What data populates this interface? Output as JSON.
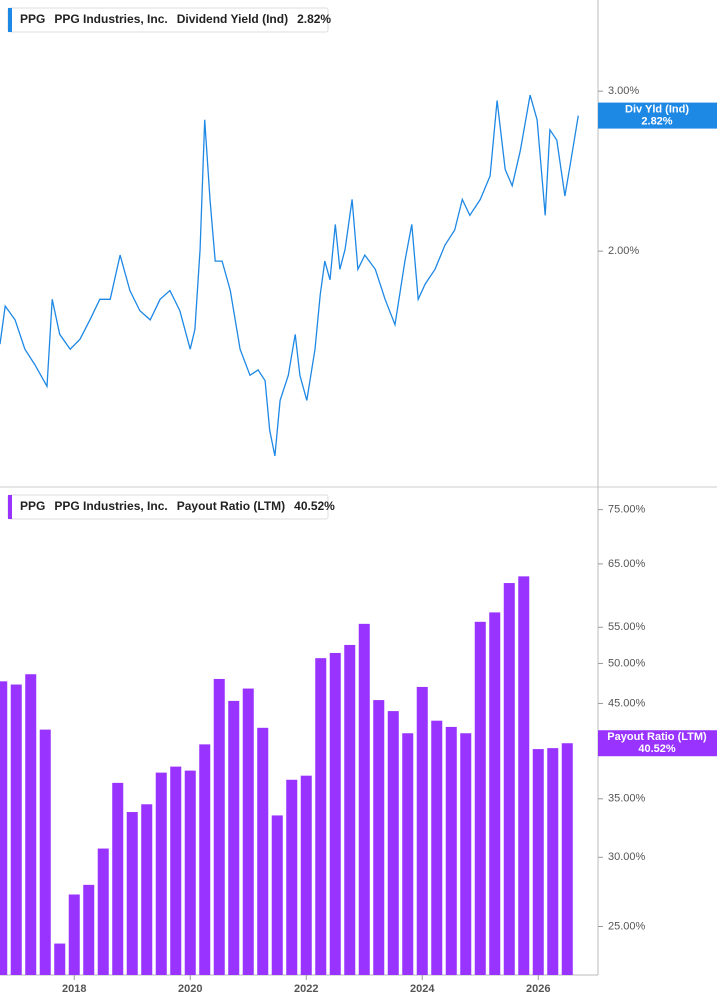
{
  "chart_data": [
    {
      "type": "line",
      "ticker": "PPG",
      "company": "PPG Industries, Inc.",
      "title": "Dividend Yield (Ind)",
      "title_value": "2.82%",
      "log_scale": true,
      "xlim": [
        2016.72,
        2027.03
      ],
      "ylim": [
        1.1,
        3.78
      ],
      "yticks": [
        {
          "value": 3,
          "label": "3.00%"
        },
        {
          "value": 2,
          "label": "2.00%"
        }
      ],
      "x": [
        2016.72,
        2016.81,
        2016.98,
        2017.15,
        2017.32,
        2017.53,
        2017.62,
        2017.75,
        2017.93,
        2018.1,
        2018.27,
        2018.44,
        2018.62,
        2018.79,
        2018.96,
        2019.13,
        2019.31,
        2019.48,
        2019.65,
        2019.82,
        2020.0,
        2020.08,
        2020.17,
        2020.25,
        2020.34,
        2020.43,
        2020.55,
        2020.69,
        2020.86,
        2021.03,
        2021.17,
        2021.29,
        2021.37,
        2021.46,
        2021.55,
        2021.69,
        2021.81,
        2021.89,
        2022.01,
        2022.15,
        2022.24,
        2022.32,
        2022.41,
        2022.5,
        2022.58,
        2022.67,
        2022.79,
        2022.89,
        2023.01,
        2023.19,
        2023.36,
        2023.53,
        2023.7,
        2023.82,
        2023.93,
        2024.05,
        2024.22,
        2024.39,
        2024.56,
        2024.69,
        2024.82,
        2025.0,
        2025.17,
        2025.29,
        2025.43,
        2025.55,
        2025.69,
        2025.86,
        2025.98,
        2026.07,
        2026.12,
        2026.2,
        2026.32,
        2026.46,
        2026.55,
        2026.69
      ],
      "series": [
        {
          "name": "Div Yld (Ind)",
          "color": "#1e88e5",
          "values": [
            1.58,
            1.74,
            1.68,
            1.56,
            1.5,
            1.42,
            1.77,
            1.62,
            1.56,
            1.6,
            1.68,
            1.77,
            1.77,
            1.98,
            1.81,
            1.72,
            1.68,
            1.77,
            1.81,
            1.72,
            1.56,
            1.64,
            2.01,
            2.79,
            2.28,
            1.95,
            1.95,
            1.81,
            1.56,
            1.46,
            1.48,
            1.44,
            1.27,
            1.19,
            1.37,
            1.46,
            1.62,
            1.46,
            1.37,
            1.56,
            1.79,
            1.95,
            1.86,
            2.14,
            1.91,
            2.01,
            2.28,
            1.91,
            1.98,
            1.91,
            1.77,
            1.66,
            1.95,
            2.14,
            1.77,
            1.84,
            1.91,
            2.03,
            2.11,
            2.28,
            2.19,
            2.28,
            2.42,
            2.93,
            2.46,
            2.36,
            2.58,
            2.97,
            2.79,
            2.39,
            2.19,
            2.72,
            2.65,
            2.3,
            2.49,
            2.82
          ]
        }
      ]
    },
    {
      "type": "bar",
      "ticker": "PPG",
      "company": "PPG Industries, Inc.",
      "title": "Payout Ratio (LTM)",
      "title_value": "40.52%",
      "log_scale": true,
      "xlim": [
        2016.72,
        2027.03
      ],
      "ylim": [
        22,
        79.6
      ],
      "xticks": [
        2018,
        2020,
        2022,
        2024,
        2026
      ],
      "yticks": [
        {
          "value": 75,
          "label": "75.00%"
        },
        {
          "value": 65,
          "label": "65.00%"
        },
        {
          "value": 55,
          "label": "55.00%"
        },
        {
          "value": 50,
          "label": "50.00%"
        },
        {
          "value": 45,
          "label": "45.00%"
        },
        {
          "value": 35,
          "label": "35.00%"
        },
        {
          "value": 30,
          "label": "30.00%"
        },
        {
          "value": 25,
          "label": "25.00%"
        }
      ],
      "x": [
        2016.75,
        2017,
        2017.25,
        2017.5,
        2017.75,
        2018,
        2018.25,
        2018.5,
        2018.75,
        2019,
        2019.25,
        2019.5,
        2019.75,
        2020,
        2020.25,
        2020.5,
        2020.75,
        2021,
        2021.25,
        2021.5,
        2021.75,
        2022,
        2022.25,
        2022.5,
        2022.75,
        2023,
        2023.25,
        2023.5,
        2023.75,
        2024,
        2024.25,
        2024.5,
        2024.75,
        2025,
        2025.25,
        2025.5,
        2025.75,
        2026,
        2026.25,
        2026.5
      ],
      "series": [
        {
          "name": "Payout Ratio (LTM)",
          "color": "#9933ff",
          "values": [
            47.7,
            47.3,
            48.6,
            42.0,
            23.9,
            27.2,
            27.9,
            30.7,
            36.5,
            33.8,
            34.5,
            37.5,
            38.1,
            37.7,
            40.4,
            48.0,
            45.3,
            46.8,
            42.2,
            33.5,
            36.8,
            37.2,
            50.7,
            51.4,
            52.5,
            55.5,
            45.4,
            44.1,
            41.6,
            47.0,
            43.0,
            42.3,
            41.6,
            55.8,
            57.2,
            61.8,
            62.9,
            39.9,
            40.0,
            40.52
          ]
        }
      ]
    }
  ]
}
